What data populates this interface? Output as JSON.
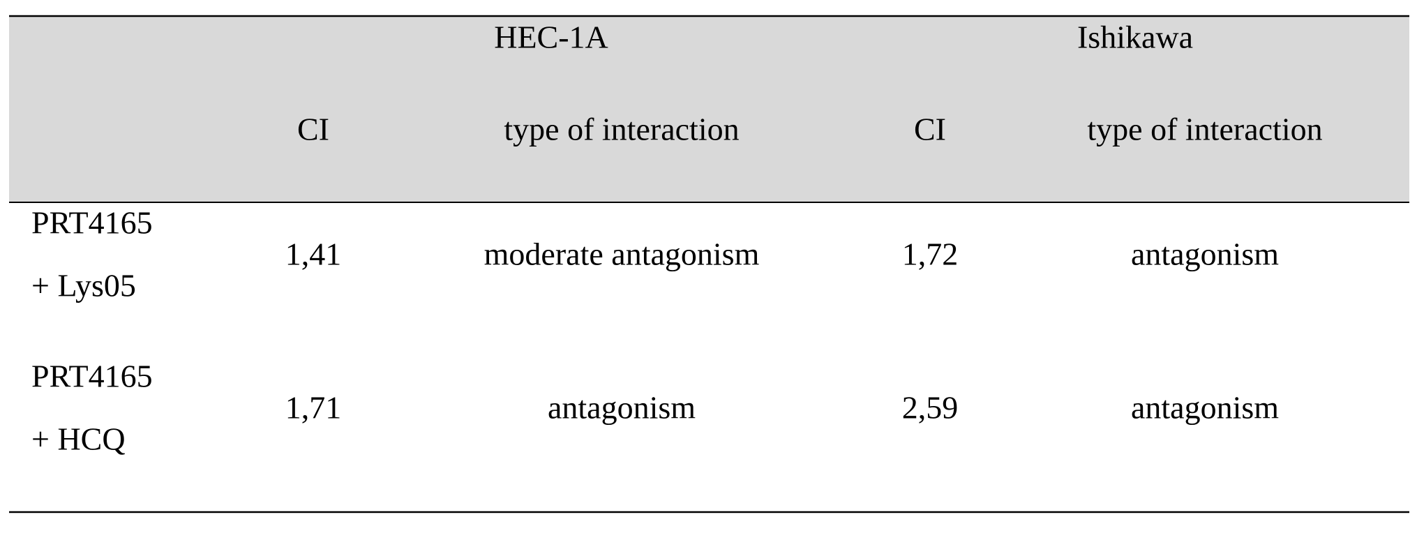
{
  "table": {
    "groups": [
      "HEC-1A",
      "Ishikawa"
    ],
    "columns": [
      "CI",
      "type of interaction",
      "CI",
      "type of interaction"
    ],
    "rows": [
      {
        "label": [
          "PRT4165",
          "+ Lys05"
        ],
        "cells": [
          "1,41",
          "moderate antagonism",
          "1,72",
          "antagonism"
        ]
      },
      {
        "label": [
          "PRT4165",
          "+ HCQ"
        ],
        "cells": [
          "1,71",
          "antagonism",
          "2,59",
          "antagonism"
        ]
      }
    ]
  }
}
